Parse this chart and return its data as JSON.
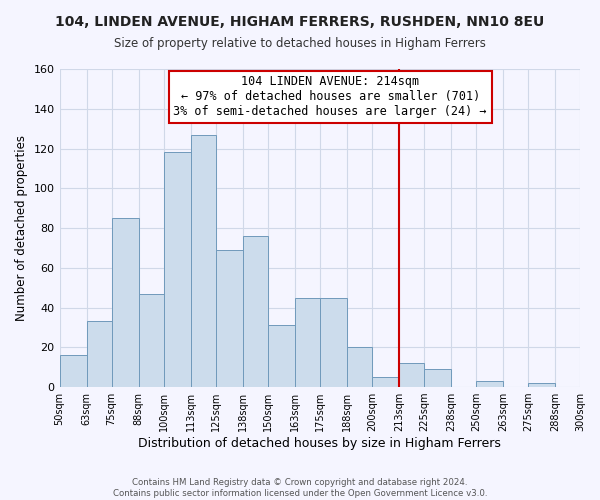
{
  "title": "104, LINDEN AVENUE, HIGHAM FERRERS, RUSHDEN, NN10 8EU",
  "subtitle": "Size of property relative to detached houses in Higham Ferrers",
  "xlabel": "Distribution of detached houses by size in Higham Ferrers",
  "ylabel": "Number of detached properties",
  "bar_edges": [
    50,
    63,
    75,
    88,
    100,
    113,
    125,
    138,
    150,
    163,
    175,
    188,
    200,
    213,
    225,
    238,
    250,
    263,
    275,
    288,
    300
  ],
  "bar_heights": [
    16,
    33,
    85,
    47,
    118,
    127,
    69,
    76,
    31,
    45,
    45,
    20,
    5,
    12,
    9,
    0,
    3,
    0,
    2,
    0
  ],
  "bar_color": "#ccdcec",
  "bar_edge_color": "#7099bb",
  "vline_x": 213,
  "vline_color": "#cc0000",
  "annotation_title": "104 LINDEN AVENUE: 214sqm",
  "annotation_line1": "← 97% of detached houses are smaller (701)",
  "annotation_line2": "3% of semi-detached houses are larger (24) →",
  "annotation_box_color": "#ffffff",
  "annotation_box_edge_color": "#cc0000",
  "tick_labels": [
    "50sqm",
    "63sqm",
    "75sqm",
    "88sqm",
    "100sqm",
    "113sqm",
    "125sqm",
    "138sqm",
    "150sqm",
    "163sqm",
    "175sqm",
    "188sqm",
    "200sqm",
    "213sqm",
    "225sqm",
    "238sqm",
    "250sqm",
    "263sqm",
    "275sqm",
    "288sqm",
    "300sqm"
  ],
  "ylim": [
    0,
    160
  ],
  "yticks": [
    0,
    20,
    40,
    60,
    80,
    100,
    120,
    140,
    160
  ],
  "grid_color": "#d0d8e8",
  "bg_color": "#f5f5ff",
  "footer1": "Contains HM Land Registry data © Crown copyright and database right 2024.",
  "footer2": "Contains public sector information licensed under the Open Government Licence v3.0."
}
